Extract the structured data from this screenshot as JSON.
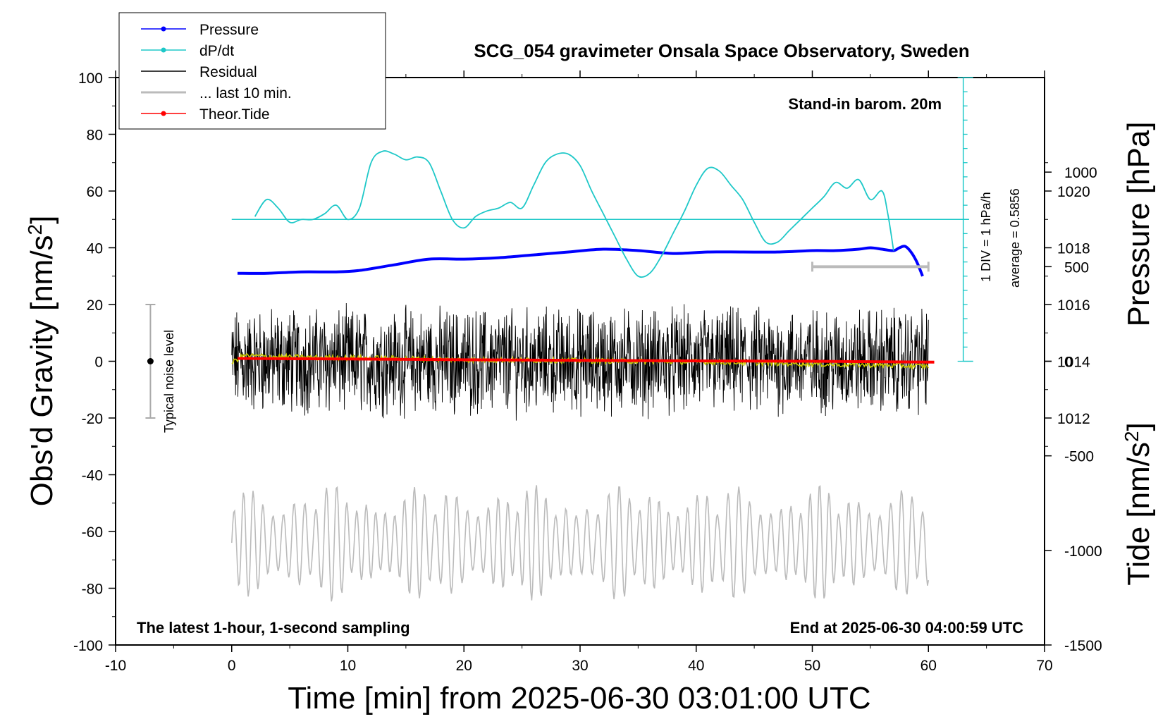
{
  "chart_data": {
    "type": "line",
    "title": "SCG_054 gravimeter Onsala Space Observatory, Sweden",
    "xlabel": "Time [min] from 2025-06-30 03:01:00 UTC",
    "ylabel_left": "Obs'd Gravity [nm/s",
    "ylabel_left_sup": "2",
    "ylabel_left_close": "]",
    "ylabel_right_pressure": "Pressure [hPa]",
    "ylabel_right_tide": "Tide [nm/s",
    "ylabel_right_tide_sup": "2",
    "ylabel_right_tide_close": "]",
    "xlim": [
      -10,
      70
    ],
    "ylim_left": [
      -100,
      100
    ],
    "ylim_pressure": [
      1004,
      1024
    ],
    "ylim_tide": [
      -1500,
      1500
    ],
    "x_ticks": [
      "-10",
      "0",
      "10",
      "20",
      "30",
      "40",
      "50",
      "60",
      "70"
    ],
    "y_ticks_left": [
      "100",
      "80",
      "60",
      "40",
      "20",
      "0",
      "-20",
      "-40",
      "-60",
      "-80",
      "-100"
    ],
    "y_ticks_pressure": [
      "1020",
      "1018",
      "1016",
      "1014",
      "1012"
    ],
    "y_ticks_tide": [
      "1000",
      "500",
      "0",
      "-500",
      "-1000",
      "-1500"
    ],
    "legend": [
      {
        "name": "Pressure",
        "color": "#0000ff",
        "marker": true
      },
      {
        "name": "dP/dt",
        "color": "#1ec8c8",
        "marker": true
      },
      {
        "name": "Residual",
        "color": "#000000",
        "marker": false
      },
      {
        "name": "... last 10 min.",
        "color": "#bbbbbb",
        "marker": false
      },
      {
        "name": "Theor.Tide",
        "color": "#ff0000",
        "marker": true
      }
    ],
    "annotations": {
      "barometer": "Stand-in barom. 20m",
      "scale_div": "1 DIV = 1 hPa/h",
      "average": "average = 0.5856",
      "noise_label": "Typical noise level",
      "bottom_left": "The latest 1-hour, 1-second sampling",
      "bottom_right": "End at 2025-06-30 04:00:59 UTC"
    },
    "noise_level": {
      "x": -7,
      "center": 0,
      "half_range": 20
    },
    "last10_bar": {
      "x_start": 50,
      "x_end": 60,
      "tide_value": 500
    },
    "dpdt_scale": {
      "x": 63,
      "baseline": 50,
      "top": 100,
      "bottom": 0,
      "div_per_unit": 5
    },
    "series": [
      {
        "name": "Pressure",
        "axis": "pressure",
        "color": "#0000ff",
        "x": [
          0.5,
          3,
          6,
          9,
          11,
          14,
          17,
          20,
          23,
          26,
          29,
          32,
          35,
          38,
          41,
          44,
          47,
          50,
          52,
          54,
          55,
          56,
          57,
          57.5,
          58,
          58.5,
          59,
          59.5
        ],
        "y": [
          1017.1,
          1017.1,
          1017.15,
          1017.15,
          1017.2,
          1017.4,
          1017.6,
          1017.6,
          1017.65,
          1017.75,
          1017.85,
          1017.95,
          1017.9,
          1017.8,
          1017.85,
          1017.85,
          1017.85,
          1017.9,
          1017.9,
          1017.95,
          1018.0,
          1017.95,
          1017.9,
          1018.0,
          1018.05,
          1017.85,
          1017.5,
          1017.0
        ]
      },
      {
        "name": "dP/dt",
        "axis": "left",
        "color": "#1ec8c8",
        "x": [
          2,
          3,
          4,
          5,
          6,
          7,
          8,
          9,
          10,
          11,
          12,
          13,
          14,
          15,
          16,
          17,
          18,
          19,
          20,
          21,
          22,
          23,
          24,
          25,
          26,
          27,
          28,
          29,
          30,
          31,
          32,
          33,
          34,
          35,
          36,
          37,
          38,
          39,
          40,
          41,
          42,
          43,
          44,
          45,
          46,
          47,
          48,
          49,
          50,
          51,
          52,
          53,
          54,
          55,
          56,
          56.5,
          57
        ],
        "y": [
          51,
          57,
          54,
          49,
          50,
          50,
          52,
          55,
          50,
          54,
          70,
          74,
          73,
          71,
          72,
          70,
          60,
          50,
          47,
          51,
          53,
          54,
          56,
          54,
          62,
          70,
          73,
          73,
          69,
          60,
          52,
          44,
          36,
          30,
          31,
          37,
          45,
          53,
          62,
          68,
          67,
          62,
          57,
          49,
          42,
          42,
          46,
          50,
          54,
          58,
          63,
          61,
          64,
          57,
          60,
          52,
          39
        ]
      },
      {
        "name": "Residual",
        "axis": "left",
        "color": "#000000",
        "x_range": [
          0,
          60
        ],
        "spread": [
          -25,
          25
        ],
        "note": "1-second sampled noisy residual around 0"
      },
      {
        "name": "Residual smoothed",
        "axis": "left",
        "color": "#c8c800",
        "x": [
          0,
          1,
          5,
          10,
          15,
          20,
          25,
          30,
          35,
          40,
          45,
          50,
          55,
          60
        ],
        "y": [
          -0.5,
          2,
          1.5,
          1.2,
          1,
          0.5,
          0.4,
          0.2,
          0,
          -0.2,
          -0.5,
          -1,
          -1.3,
          -1.8
        ]
      },
      {
        "name": "... last 10 min.",
        "axis": "left",
        "color": "#bbbbbb",
        "x_range": [
          0,
          60
        ],
        "spread": [
          -85,
          -43
        ],
        "note": "oscillating grey trace, range approx -85 to -43 on left axis"
      },
      {
        "name": "Theor.Tide",
        "axis": "tide",
        "color": "#ff0000",
        "x": [
          0.5,
          10,
          20,
          30,
          40,
          50,
          60.5
        ],
        "y": [
          15,
          12,
          8,
          5,
          2,
          0,
          -5
        ]
      }
    ]
  }
}
